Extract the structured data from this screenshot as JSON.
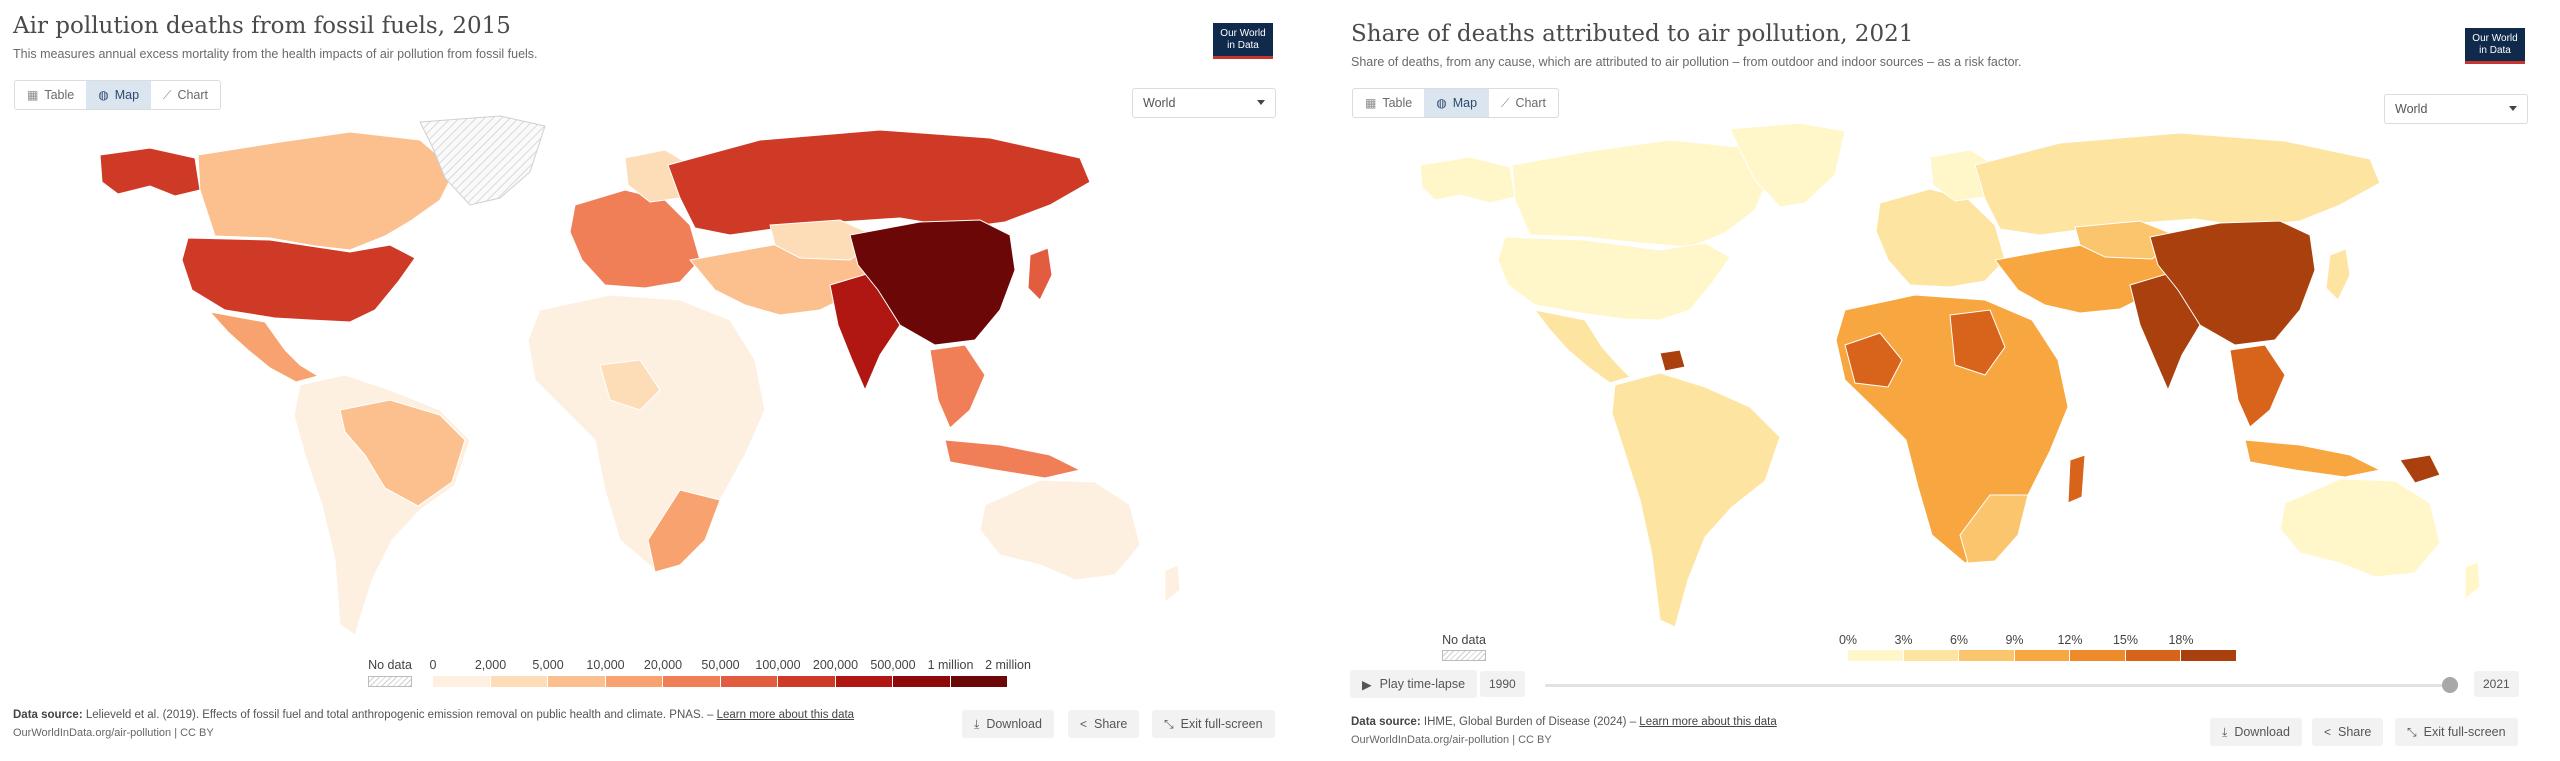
{
  "left": {
    "title": "Air pollution deaths from fossil fuels, 2015",
    "subtitle": "This measures annual excess mortality from the health impacts of air pollution from fossil fuels.",
    "logo_line1": "Our World",
    "logo_line2": "in Data",
    "tabs": [
      {
        "label": "Table",
        "icon": "table-icon"
      },
      {
        "label": "Map",
        "icon": "globe-icon",
        "active": true
      },
      {
        "label": "Chart",
        "icon": "chart-icon"
      }
    ],
    "region": "World",
    "legend": {
      "no_data": "No data",
      "bins": [
        "0",
        "2,000",
        "5,000",
        "10,000",
        "20,000",
        "50,000",
        "100,000",
        "200,000",
        "500,000",
        "1 million",
        "2 million"
      ],
      "colors": [
        "#fef0e1",
        "#fddcb8",
        "#fbc08e",
        "#f8a270",
        "#f07f58",
        "#e25c40",
        "#cf3a27",
        "#b11712",
        "#8e0a0a",
        "#6b0707"
      ]
    },
    "source_label": "Data source:",
    "source_text": "Lelieveld et al. (2019). Effects of fossil fuel and total anthropogenic emission removal on public health and climate. PNAS. –",
    "source_link": "Learn more about this data",
    "url_line": "OurWorldInData.org/air-pollution | CC BY",
    "buttons": {
      "download": "Download",
      "share": "Share",
      "exit": "Exit full-screen"
    }
  },
  "right": {
    "title": "Share of deaths attributed to air pollution, 2021",
    "subtitle": "Share of deaths, from any cause, which are attributed to air pollution – from outdoor and indoor sources – as a risk factor.",
    "logo_line1": "Our World",
    "logo_line2": "in Data",
    "tabs": [
      {
        "label": "Table",
        "icon": "table-icon"
      },
      {
        "label": "Map",
        "icon": "globe-icon",
        "active": true
      },
      {
        "label": "Chart",
        "icon": "chart-icon"
      }
    ],
    "region": "World",
    "legend": {
      "no_data": "No data",
      "bins": [
        "0%",
        "3%",
        "6%",
        "9%",
        "12%",
        "15%",
        "18%"
      ],
      "colors": [
        "#fff7c9",
        "#fde4a0",
        "#fbc56e",
        "#f7a640",
        "#ef8a2a",
        "#d8631a",
        "#a9400e"
      ]
    },
    "timeline": {
      "play_label": "Play time-lapse",
      "start_year": "1990",
      "end_year": "2021"
    },
    "source_label": "Data source:",
    "source_text": "IHME, Global Burden of Disease (2024) –",
    "source_link": "Learn more about this data",
    "url_line": "OurWorldInData.org/air-pollution | CC BY",
    "buttons": {
      "download": "Download",
      "share": "Share",
      "exit": "Exit full-screen"
    }
  }
}
